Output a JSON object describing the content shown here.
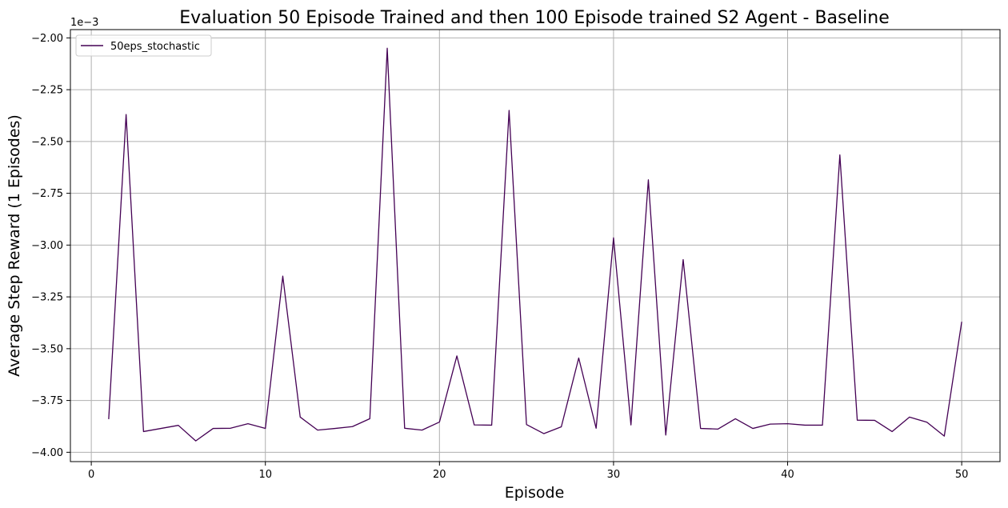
{
  "chart_data": {
    "type": "line",
    "title": "Evaluation 50 Episode Trained and then 100 Episode trained S2 Agent - Baseline",
    "xlabel": "Episode",
    "ylabel": "Average Step Reward (1 Episodes)",
    "offset_text": "1e−3",
    "xlim": [
      -1.2,
      52.2
    ],
    "ylim": [
      -4.045,
      -1.96
    ],
    "x_ticks": [
      0,
      10,
      20,
      30,
      40,
      50
    ],
    "x_tick_labels": [
      "0",
      "10",
      "20",
      "30",
      "40",
      "50"
    ],
    "y_ticks": [
      -4.0,
      -3.75,
      -3.5,
      -3.25,
      -3.0,
      -2.75,
      -2.5,
      -2.25,
      -2.0
    ],
    "y_tick_labels": [
      "−4.00",
      "−3.75",
      "−3.50",
      "−3.25",
      "−3.00",
      "−2.75",
      "−2.50",
      "−2.25",
      "−2.00"
    ],
    "grid": true,
    "legend_position": "upper-left",
    "x": [
      1,
      2,
      3,
      4,
      5,
      6,
      7,
      8,
      9,
      10,
      11,
      12,
      13,
      14,
      15,
      16,
      17,
      18,
      19,
      20,
      21,
      22,
      23,
      24,
      25,
      26,
      27,
      28,
      29,
      30,
      31,
      32,
      33,
      34,
      35,
      36,
      37,
      38,
      39,
      40,
      41,
      42,
      43,
      44,
      45,
      46,
      47,
      48,
      49,
      50
    ],
    "series": [
      {
        "name": "50eps_stochastic",
        "color": "#440154",
        "values": [
          -3.84,
          -2.37,
          -3.9,
          -3.885,
          -3.87,
          -3.945,
          -3.885,
          -3.884,
          -3.862,
          -3.885,
          -3.15,
          -3.83,
          -3.893,
          -3.885,
          -3.876,
          -3.838,
          -2.05,
          -3.884,
          -3.893,
          -3.854,
          -3.535,
          -3.868,
          -3.869,
          -2.35,
          -3.866,
          -3.91,
          -3.877,
          -3.545,
          -3.884,
          -2.965,
          -3.868,
          -2.685,
          -3.917,
          -3.07,
          -3.885,
          -3.888,
          -3.838,
          -3.885,
          -3.864,
          -3.862,
          -3.869,
          -3.869,
          -2.565,
          -3.845,
          -3.846,
          -3.9,
          -3.83,
          -3.855,
          -3.922,
          -3.37
        ]
      }
    ]
  }
}
